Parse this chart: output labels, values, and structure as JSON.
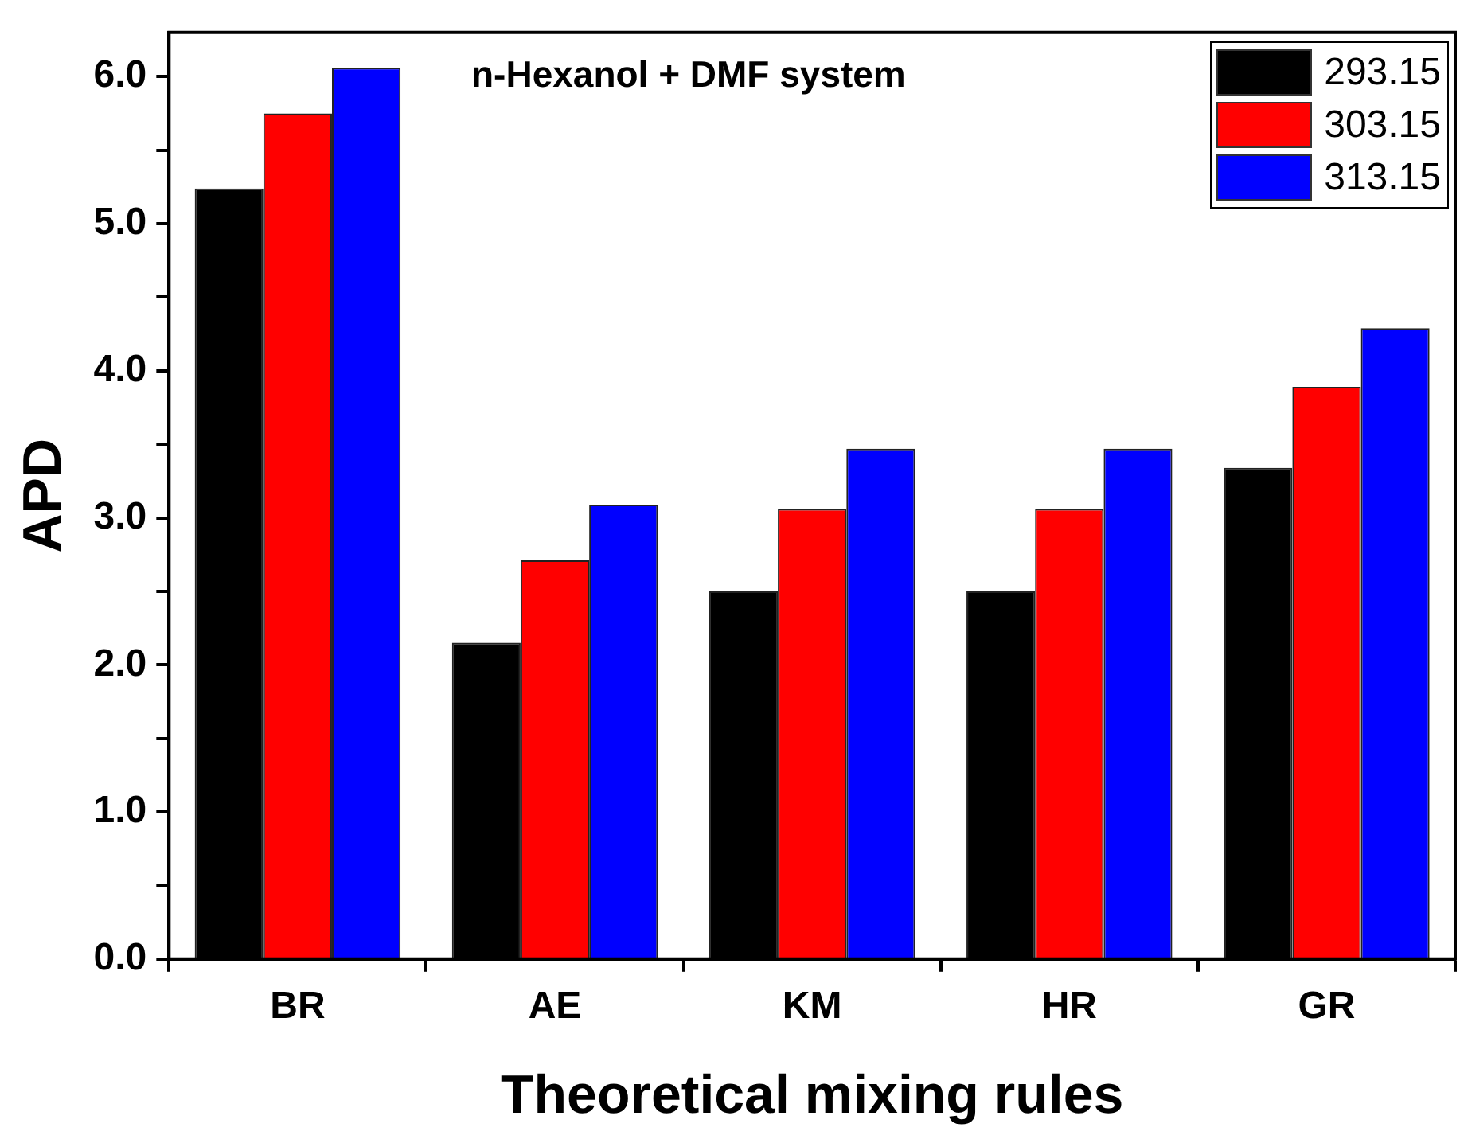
{
  "chart_data": {
    "type": "bar",
    "title": "n-Hexanol + DMF system",
    "xlabel": "Theoretical mixing rules",
    "ylabel": "APD",
    "categories": [
      "BR",
      "AE",
      "KM",
      "HR",
      "GR"
    ],
    "series": [
      {
        "name": "293.15",
        "color": "#000000",
        "values": [
          5.24,
          2.15,
          2.5,
          2.5,
          3.34
        ]
      },
      {
        "name": "303.15",
        "color": "#ff0000",
        "values": [
          5.75,
          2.71,
          3.06,
          3.06,
          3.89
        ]
      },
      {
        "name": "313.15",
        "color": "#0000ff",
        "values": [
          6.06,
          3.09,
          3.47,
          3.47,
          4.29
        ]
      }
    ],
    "ylim": [
      0,
      6.3
    ],
    "yticks": [
      {
        "value": 0,
        "label": "0.0"
      },
      {
        "value": 0.5,
        "label": null
      },
      {
        "value": 1,
        "label": "1.0"
      },
      {
        "value": 1.5,
        "label": null
      },
      {
        "value": 2,
        "label": "2.0"
      },
      {
        "value": 2.5,
        "label": null
      },
      {
        "value": 3,
        "label": "3.0"
      },
      {
        "value": 3.5,
        "label": null
      },
      {
        "value": 4,
        "label": "4.0"
      },
      {
        "value": 4.5,
        "label": null
      },
      {
        "value": 5,
        "label": "5.0"
      },
      {
        "value": 5.5,
        "label": null
      },
      {
        "value": 6,
        "label": "6.0"
      }
    ],
    "grid": false,
    "legend": "top right"
  }
}
